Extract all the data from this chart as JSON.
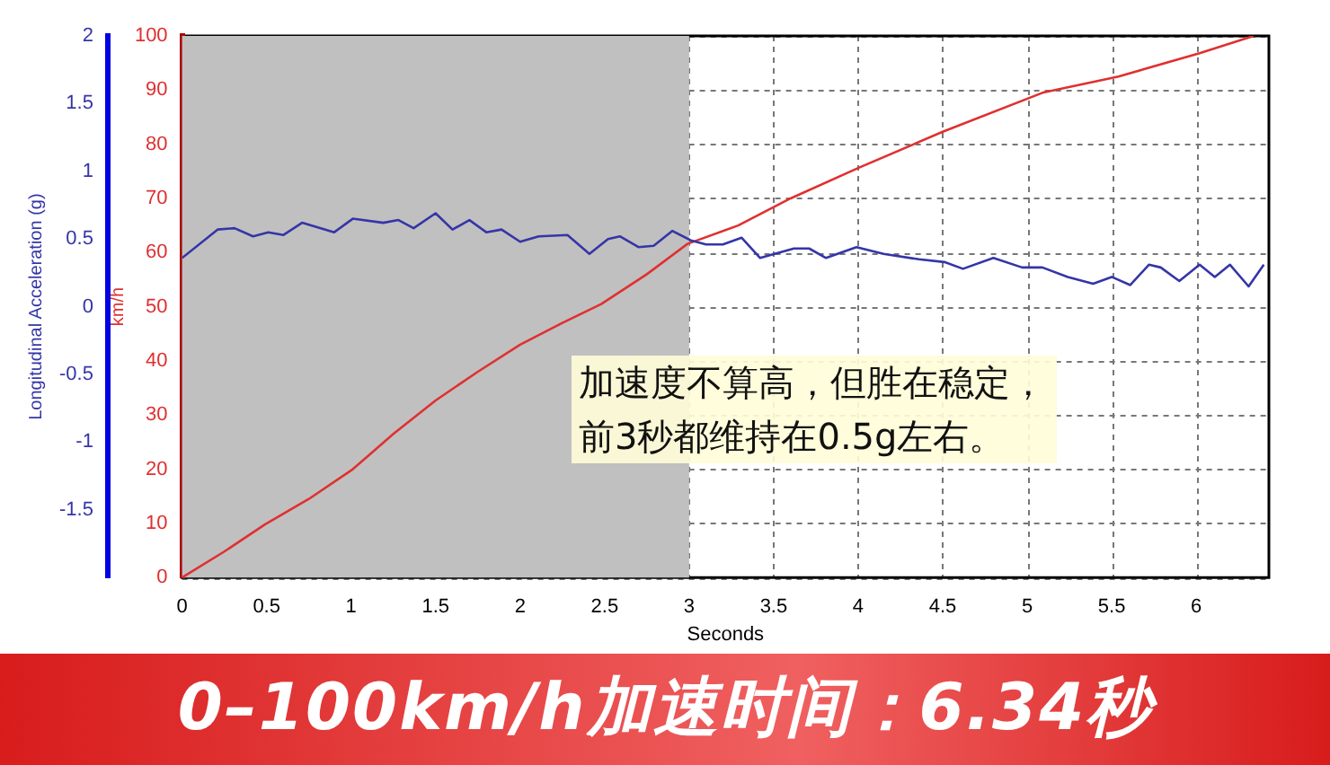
{
  "chart_data": {
    "type": "line",
    "title": "0–100km/h加速时间：6.34秒",
    "xlabel": "Seconds",
    "ylabel": "Longitudinal Acceleration (g)",
    "y2label": "km/h",
    "xlim": [
      0,
      6.43
    ],
    "xticks": [
      0,
      0.5,
      1,
      1.5,
      2,
      2.5,
      3,
      3.5,
      4,
      4.5,
      5,
      5.5,
      6
    ],
    "ylim": [
      -2,
      2
    ],
    "yticks": [
      -1.5,
      -1,
      -0.5,
      0,
      0.5,
      1,
      1.5,
      2
    ],
    "y2lim": [
      0,
      100
    ],
    "y2ticks": [
      0,
      10,
      20,
      30,
      40,
      50,
      60,
      70,
      80,
      90,
      100
    ],
    "grid": true,
    "legend": false,
    "marker": "none",
    "line_style": "solid",
    "bands": [
      {
        "axis": "x",
        "from": 0,
        "to": 3,
        "color": "#c0c0c0"
      }
    ],
    "annotations": [
      "加速度不算高，但胜在稳定，前3秒都维持在0.5g左右。"
    ],
    "series": [
      {
        "color": "#3535a8",
        "x": [
          0,
          0.21,
          0.31,
          0.42,
          0.51,
          0.6,
          0.71,
          0.9,
          1.01,
          1.19,
          1.28,
          1.37,
          1.5,
          1.6,
          1.7,
          1.8,
          1.89,
          2,
          2.11,
          2.28,
          2.41,
          2.52,
          2.59,
          2.7,
          2.79,
          2.9,
          3.01,
          3.1,
          3.2,
          3.31,
          3.42,
          3.62,
          3.71,
          3.81,
          3.99,
          4.15,
          4.36,
          4.51,
          4.62,
          4.8,
          4.97,
          5.09,
          5.24,
          5.39,
          5.5,
          5.61,
          5.72,
          5.79,
          5.9,
          6.02,
          6.11,
          6.2,
          6.31,
          6.4
        ],
        "values": [
          0.36,
          0.57,
          0.58,
          0.52,
          0.55,
          0.53,
          0.62,
          0.55,
          0.65,
          0.62,
          0.64,
          0.58,
          0.69,
          0.57,
          0.64,
          0.55,
          0.57,
          0.48,
          0.52,
          0.53,
          0.39,
          0.5,
          0.52,
          0.44,
          0.45,
          0.56,
          0.49,
          0.46,
          0.46,
          0.51,
          0.36,
          0.43,
          0.43,
          0.36,
          0.44,
          0.39,
          0.35,
          0.33,
          0.28,
          0.36,
          0.29,
          0.29,
          0.22,
          0.17,
          0.22,
          0.16,
          0.31,
          0.29,
          0.19,
          0.31,
          0.22,
          0.31,
          0.15,
          0.31
        ]
      },
      {
        "color": "#e03030",
        "axis": "y2",
        "x": [
          0,
          0.25,
          0.49,
          0.75,
          1.01,
          1.25,
          1.5,
          1.75,
          2,
          2.25,
          2.48,
          2.75,
          2.99,
          3.29,
          3.6,
          4,
          4.5,
          5.09,
          5.54,
          6.02,
          6.34
        ],
        "values": [
          0,
          4.8,
          9.8,
          14.5,
          20,
          26.5,
          32.7,
          38,
          43,
          47,
          50.5,
          56,
          61.6,
          65,
          70,
          75.6,
          82.3,
          89.5,
          92.5,
          96.8,
          100
        ]
      }
    ]
  }
}
